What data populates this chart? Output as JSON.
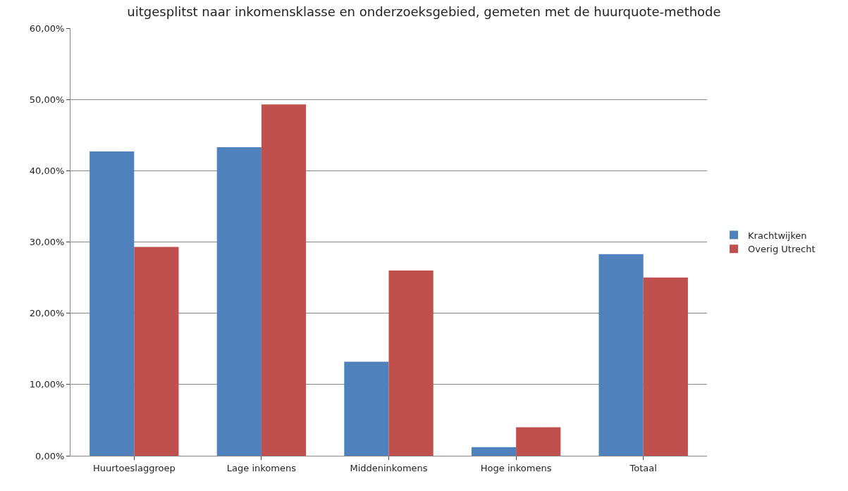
{
  "chart_data": {
    "type": "bar",
    "title": "uitgesplitst naar inkomensklasse en onderzoeksgebied, gemeten met de huurquote-methode",
    "categories": [
      "Huurtoeslaggroep",
      "Lage inkomens",
      "Middeninkomens",
      "Hoge inkomens",
      "Totaal"
    ],
    "series": [
      {
        "name": "Krachtwijken",
        "color": "#4f81bd",
        "values": [
          42.7,
          43.3,
          13.2,
          1.2,
          28.3
        ]
      },
      {
        "name": "Overig Utrecht",
        "color": "#c0504d",
        "values": [
          29.3,
          49.3,
          26.0,
          4.0,
          25.0
        ]
      }
    ],
    "ylim": [
      0,
      60
    ],
    "yticks": [
      {
        "value": 0,
        "label": "0,00%"
      },
      {
        "value": 10,
        "label": "10,00%"
      },
      {
        "value": 20,
        "label": "20,00%"
      },
      {
        "value": 30,
        "label": "30,00%"
      },
      {
        "value": 40,
        "label": "40,00%"
      },
      {
        "value": 50,
        "label": "50,00%"
      },
      {
        "value": 60,
        "label": "60,00%"
      }
    ],
    "grid": "y",
    "legend": "right"
  }
}
